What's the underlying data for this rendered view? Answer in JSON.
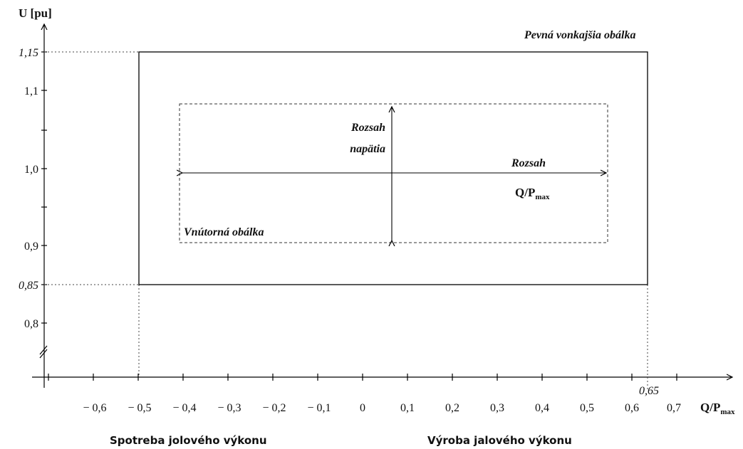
{
  "axes": {
    "y_title": "U [pu]",
    "x_title_main": "Q/P",
    "x_title_sub": "max",
    "y_ticks": [
      "1,15",
      "1,1",
      "1,0",
      "0,9",
      "0,85",
      "0,8"
    ],
    "x_ticks": [
      "− 0,6",
      "− 0,5",
      "− 0,4",
      "− 0,3",
      "− 0,2",
      "− 0,1",
      "0",
      "0,1",
      "0,2",
      "0,3",
      "0,4",
      "0,5",
      "0,6",
      "0,7"
    ],
    "x_marker": "0,65"
  },
  "labels": {
    "outer_envelope": "Pevná vonkajšia obálka",
    "inner_envelope": "Vnútorná obálka",
    "voltage_range_line1": "Rozsah",
    "voltage_range_line2": "napätia",
    "q_range_line1": "Rozsah",
    "q_range_main": "Q/P",
    "q_range_sub": "max"
  },
  "captions": {
    "consumption": "Spotreba jolového výkonu",
    "production": "Výroba jalového výkonu"
  },
  "colors": {
    "line": "#000000",
    "dotted": "#444444",
    "text": "#111111"
  }
}
